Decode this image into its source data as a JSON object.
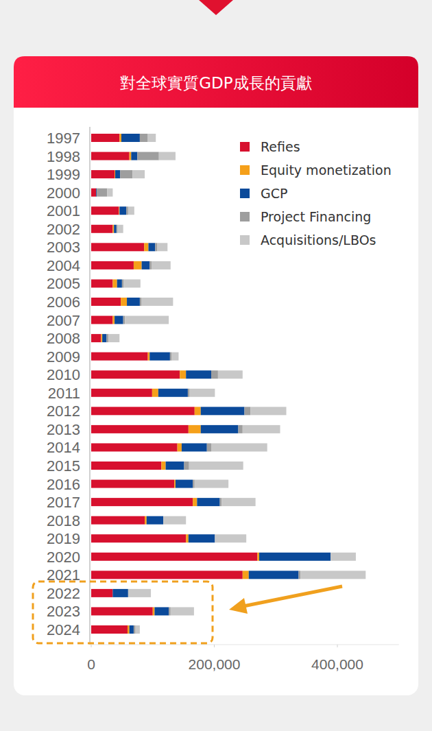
{
  "chart_data": {
    "type": "bar",
    "orientation": "horizontal",
    "stacked": true,
    "title": "對全球實質GDP成長的貢獻",
    "categories": [
      "1997",
      "1998",
      "1999",
      "2000",
      "2001",
      "2002",
      "2003",
      "2004",
      "2005",
      "2006",
      "2007",
      "2008",
      "2009",
      "2010",
      "2011",
      "2012",
      "2013",
      "2014",
      "2015",
      "2016",
      "2017",
      "2018",
      "2019",
      "2020",
      "2021",
      "2022",
      "2023",
      "2024"
    ],
    "series": [
      {
        "name": "Refies",
        "color": "#d7102e",
        "values": [
          46000,
          62000,
          38000,
          8000,
          45000,
          35000,
          86000,
          69000,
          35000,
          48000,
          35000,
          16000,
          92000,
          144000,
          99000,
          168000,
          158000,
          140000,
          114000,
          135000,
          165000,
          87000,
          154000,
          270000,
          246000,
          35000,
          100000,
          59000
        ]
      },
      {
        "name": "Equity monetization",
        "color": "#f5a01a",
        "values": [
          3000,
          3000,
          1000,
          0,
          1000,
          2000,
          7000,
          13000,
          7000,
          10000,
          3000,
          2000,
          3000,
          10000,
          10000,
          10000,
          20000,
          7000,
          7000,
          2000,
          7000,
          3000,
          4000,
          3000,
          10000,
          0,
          3000,
          3000
        ]
      },
      {
        "name": "GCP",
        "color": "#0b4a9a",
        "values": [
          30000,
          10000,
          8000,
          1000,
          11000,
          4000,
          11000,
          13000,
          8000,
          21000,
          14000,
          7000,
          33000,
          41000,
          48000,
          71000,
          61000,
          41000,
          30000,
          28000,
          37000,
          27000,
          43000,
          116000,
          81000,
          25000,
          23000,
          7000
        ]
      },
      {
        "name": "Project Financing",
        "color": "#9e9e9e",
        "values": [
          13000,
          35000,
          20000,
          17000,
          3000,
          2000,
          3000,
          3000,
          3000,
          3000,
          3000,
          3000,
          3000,
          11000,
          3000,
          10000,
          7000,
          7000,
          8000,
          3000,
          3000,
          0,
          0,
          0,
          3000,
          0,
          3000,
          3000
        ]
      },
      {
        "name": "Acquisitions/LBOs",
        "color": "#c8c8c8",
        "values": [
          13000,
          27000,
          20000,
          9000,
          10000,
          9000,
          17000,
          31000,
          27000,
          51000,
          71000,
          18000,
          11000,
          40000,
          41000,
          58000,
          61000,
          91000,
          88000,
          55000,
          55000,
          37000,
          51000,
          41000,
          106000,
          37000,
          38000,
          7000
        ]
      }
    ],
    "xlim": [
      0,
      500000
    ],
    "xticks": [
      0,
      {
        "value": 200000,
        "label": "200,000"
      },
      {
        "value": 400000,
        "label": "400,000"
      }
    ],
    "grid": false,
    "legend": "top-right"
  }
}
